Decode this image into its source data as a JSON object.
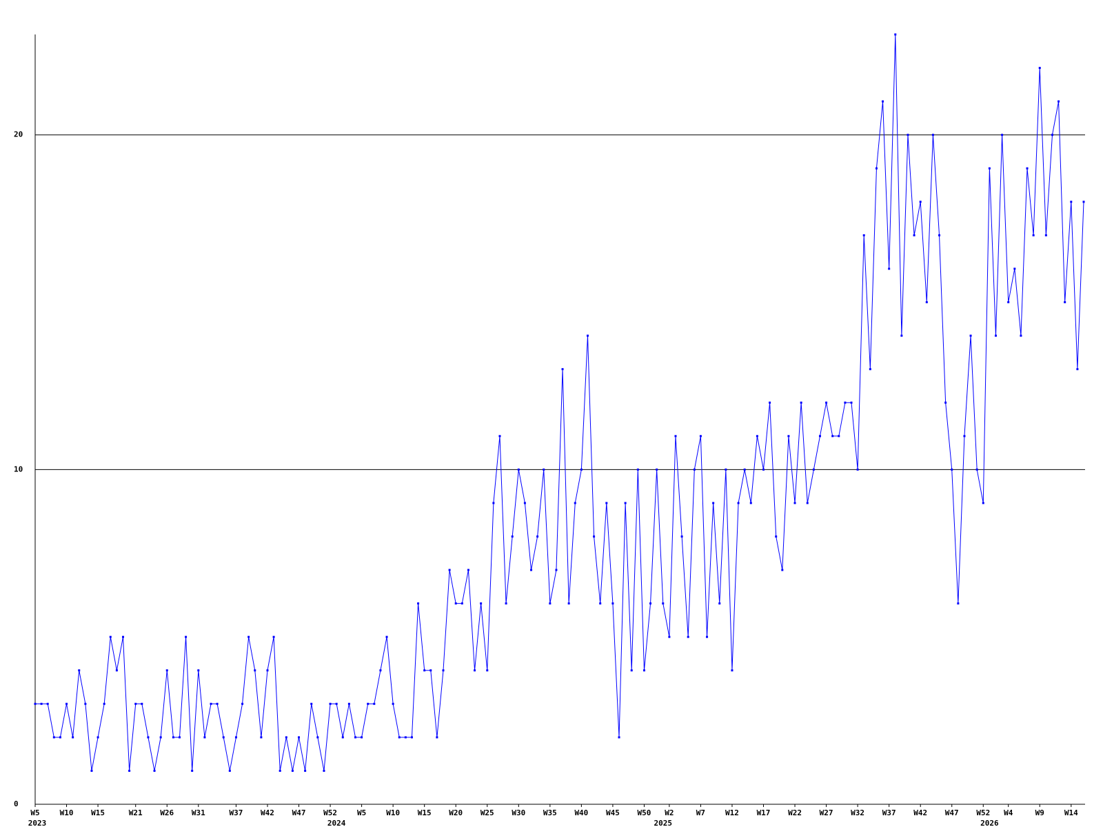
{
  "chart_data": {
    "type": "line",
    "categories": [
      "W5",
      null,
      null,
      null,
      null,
      "W10",
      null,
      null,
      null,
      null,
      "W15",
      null,
      null,
      null,
      null,
      null,
      "W21",
      null,
      null,
      null,
      null,
      "W26",
      null,
      null,
      null,
      null,
      "W31",
      null,
      null,
      null,
      null,
      null,
      "W37",
      null,
      null,
      null,
      null,
      "W42",
      null,
      null,
      null,
      null,
      "W47",
      null,
      null,
      null,
      null,
      "W52",
      null,
      null,
      null,
      null,
      "W5",
      null,
      null,
      null,
      null,
      "W10",
      null,
      null,
      null,
      null,
      "W15",
      null,
      null,
      null,
      null,
      "W20",
      null,
      null,
      null,
      null,
      "W25",
      null,
      null,
      null,
      null,
      "W30",
      null,
      null,
      null,
      null,
      "W35",
      null,
      null,
      null,
      null,
      "W40",
      null,
      null,
      null,
      null,
      "W45",
      null,
      null,
      null,
      null,
      "W50",
      null,
      null,
      null,
      "W2",
      null,
      null,
      null,
      null,
      "W7",
      null,
      null,
      null,
      null,
      "W12",
      null,
      null,
      null,
      null,
      "W17",
      null,
      null,
      null,
      null,
      "W22",
      null,
      null,
      null,
      null,
      "W27",
      null,
      null,
      null,
      null,
      "W32",
      null,
      null,
      null,
      null,
      "W37",
      null,
      null,
      null,
      null,
      "W42",
      null,
      null,
      null,
      null,
      "W47",
      null,
      null,
      null,
      null,
      "W52",
      null,
      null,
      null,
      "W4",
      null,
      null,
      null,
      null,
      "W9",
      null,
      null,
      null,
      null,
      "W14",
      null,
      null
    ],
    "years": [
      "2023",
      null,
      null,
      null,
      null,
      null,
      null,
      null,
      null,
      null,
      null,
      null,
      null,
      null,
      null,
      null,
      null,
      null,
      null,
      null,
      null,
      null,
      null,
      null,
      null,
      null,
      null,
      null,
      null,
      null,
      null,
      null,
      null,
      null,
      null,
      null,
      null,
      null,
      null,
      null,
      null,
      null,
      null,
      null,
      null,
      null,
      null,
      null,
      "2024",
      null,
      null,
      null,
      null,
      null,
      null,
      null,
      null,
      null,
      null,
      null,
      null,
      null,
      null,
      null,
      null,
      null,
      null,
      null,
      null,
      null,
      null,
      null,
      null,
      null,
      null,
      null,
      null,
      null,
      null,
      null,
      null,
      null,
      null,
      null,
      null,
      null,
      null,
      null,
      null,
      null,
      null,
      null,
      null,
      null,
      null,
      null,
      null,
      null,
      null,
      null,
      "2025",
      null,
      null,
      null,
      null,
      null,
      null,
      null,
      null,
      null,
      null,
      null,
      null,
      null,
      null,
      null,
      null,
      null,
      null,
      null,
      null,
      null,
      null,
      null,
      null,
      null,
      null,
      null,
      null,
      null,
      null,
      null,
      null,
      null,
      null,
      null,
      null,
      null,
      null,
      null,
      null,
      null,
      null,
      null,
      null,
      null,
      null,
      null,
      null,
      null,
      null,
      null,
      "2026",
      null,
      null,
      null,
      null,
      null,
      null,
      null,
      null,
      null,
      null,
      null,
      null,
      null,
      null,
      null
    ],
    "series": [
      {
        "color": "#0000ff",
        "values": [
          3,
          3,
          3,
          2,
          2,
          3,
          2,
          4,
          3,
          1,
          2,
          3,
          5,
          4,
          5,
          1,
          3,
          3,
          2,
          1,
          2,
          4,
          2,
          2,
          5,
          1,
          4,
          2,
          3,
          3,
          2,
          1,
          2,
          3,
          5,
          4,
          2,
          4,
          5,
          1,
          2,
          1,
          2,
          1,
          3,
          2,
          1,
          3,
          3,
          2,
          3,
          2,
          2,
          3,
          3,
          4,
          5,
          3,
          2,
          2,
          2,
          6,
          4,
          4,
          2,
          4,
          7,
          6,
          6,
          7,
          4,
          6,
          4,
          9,
          11,
          6,
          8,
          10,
          9,
          7,
          8,
          10,
          6,
          7,
          13,
          6,
          9,
          10,
          14,
          8,
          6,
          9,
          6,
          2,
          9,
          4,
          10,
          4,
          6,
          10,
          6,
          5,
          11,
          8,
          5,
          10,
          11,
          5,
          9,
          6,
          10,
          4,
          9,
          10,
          9,
          11,
          10,
          12,
          8,
          7,
          11,
          9,
          12,
          9,
          10,
          11,
          12,
          11,
          11,
          12,
          12,
          10,
          17,
          13,
          19,
          21,
          16,
          23,
          14,
          20,
          17,
          18,
          15,
          20,
          17,
          12,
          10,
          6,
          11,
          14,
          10,
          9,
          19,
          14,
          20,
          15,
          16,
          14,
          19,
          17,
          22,
          17,
          20,
          21,
          15,
          18,
          13,
          18
        ]
      }
    ],
    "ylim": [
      0,
      23
    ],
    "yticks": [
      0,
      10,
      20
    ],
    "grid": true
  }
}
